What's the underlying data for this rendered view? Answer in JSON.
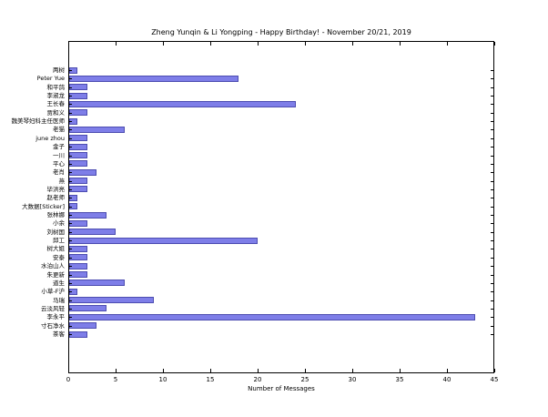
{
  "chart_data": {
    "type": "bar",
    "orientation": "horizontal",
    "title": "Zheng Yunqin & Li Yongping - Happy Birthday! - November 20/21, 2019",
    "xlabel": "Number of Messages",
    "ylabel": "",
    "categories": [
      "两树",
      "Peter Yue",
      "和平鸽",
      "李淑龙",
      "王长春",
      "贾和义",
      "魏美琴妇科主任医师",
      "老猫",
      "june zhou",
      "金子",
      "一川",
      "平心",
      "老肖",
      "燕",
      "毕洪亮",
      "赵老师",
      "大数据[Sticker]",
      "张林娜",
      "小余",
      "刘树国",
      "邱工",
      "树大姐",
      "安泰",
      "水泊山人",
      "朱更新",
      "道生",
      "小草-F沪",
      "马瑞",
      "云淡风轻",
      "李永平",
      "寸石净水",
      "茶客"
    ],
    "values": [
      1,
      18,
      2,
      2,
      24,
      2,
      1,
      6,
      2,
      2,
      2,
      2,
      3,
      2,
      2,
      1,
      1,
      4,
      2,
      5,
      20,
      2,
      2,
      2,
      2,
      6,
      1,
      9,
      4,
      43,
      3,
      2
    ],
    "xticks": [
      0,
      5,
      10,
      15,
      20,
      25,
      30,
      35,
      40,
      45
    ],
    "xlim": [
      0,
      45
    ],
    "grid": false,
    "legend": null,
    "bar_color": "#7e7ee8",
    "bar_edge_color": "#4c4cb0"
  }
}
